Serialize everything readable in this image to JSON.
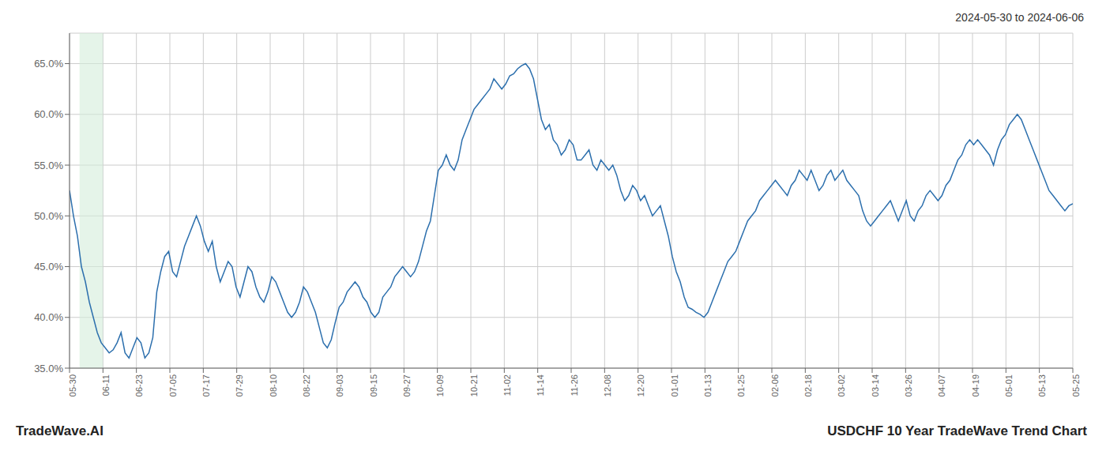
{
  "chart_data": {
    "type": "line",
    "title": "2024-05-30 to 2024-06-06",
    "annotations": [
      "TradeWave.AI",
      "USDCHF 10 Year TradeWave Trend Chart"
    ],
    "color": "#2c6fad",
    "grid": true,
    "highlight": {
      "x": [
        0.3,
        1.0
      ],
      "color": "#d4edda"
    },
    "xlim": [
      0,
      30
    ],
    "xticks": [
      {
        "value": 0,
        "label": "05-30"
      },
      {
        "value": 1,
        "label": "06-11"
      },
      {
        "value": 2,
        "label": "06-23"
      },
      {
        "value": 3,
        "label": "07-05"
      },
      {
        "value": 4,
        "label": "07-17"
      },
      {
        "value": 5,
        "label": "07-29"
      },
      {
        "value": 6,
        "label": "08-10"
      },
      {
        "value": 7,
        "label": "08-22"
      },
      {
        "value": 8,
        "label": "09-03"
      },
      {
        "value": 9,
        "label": "09-15"
      },
      {
        "value": 10,
        "label": "09-27"
      },
      {
        "value": 11,
        "label": "10-09"
      },
      {
        "value": 12,
        "label": "10-21"
      },
      {
        "value": 13,
        "label": "11-02"
      },
      {
        "value": 14,
        "label": "11-14"
      },
      {
        "value": 15,
        "label": "11-26"
      },
      {
        "value": 16,
        "label": "12-08"
      },
      {
        "value": 17,
        "label": "12-20"
      },
      {
        "value": 18,
        "label": "01-01"
      },
      {
        "value": 19,
        "label": "01-13"
      },
      {
        "value": 20,
        "label": "01-25"
      },
      {
        "value": 21,
        "label": "02-06"
      },
      {
        "value": 22,
        "label": "02-18"
      },
      {
        "value": 23,
        "label": "03-02"
      },
      {
        "value": 24,
        "label": "03-14"
      },
      {
        "value": 25,
        "label": "03-26"
      },
      {
        "value": 26,
        "label": "04-07"
      },
      {
        "value": 27,
        "label": "04-19"
      },
      {
        "value": 28,
        "label": "05-01"
      },
      {
        "value": 29,
        "label": "05-13"
      },
      {
        "value": 30,
        "label": "05-25"
      }
    ],
    "ylim": [
      35.0,
      68.0
    ],
    "yticks": [
      {
        "value": 35.0,
        "label": "35.0%"
      },
      {
        "value": 40.0,
        "label": "40.0%"
      },
      {
        "value": 45.0,
        "label": "45.0%"
      },
      {
        "value": 50.0,
        "label": "50.0%"
      },
      {
        "value": 55.0,
        "label": "55.0%"
      },
      {
        "value": 60.0,
        "label": "60.0%"
      },
      {
        "value": 65.0,
        "label": "65.0%"
      }
    ],
    "x": [
      0,
      0.118577,
      0.237154,
      0.355731,
      0.474308,
      0.592885,
      0.711462,
      0.83004,
      0.948617,
      1.067194,
      1.185771,
      1.304348,
      1.422925,
      1.541502,
      1.660079,
      1.778656,
      1.897233,
      2.01581,
      2.134387,
      2.252964,
      2.371542,
      2.490119,
      2.608696,
      2.727273,
      2.84585,
      2.964427,
      3.083004,
      3.201581,
      3.320158,
      3.438735,
      3.557312,
      3.675889,
      3.794466,
      3.913043,
      4.031621,
      4.150198,
      4.268775,
      4.387352,
      4.505929,
      4.624506,
      4.743083,
      4.86166,
      4.980237,
      5.098814,
      5.217391,
      5.335968,
      5.454545,
      5.573123,
      5.6917,
      5.810277,
      5.928854,
      6.047431,
      6.166008,
      6.284585,
      6.403162,
      6.521739,
      6.640316,
      6.758893,
      6.87747,
      6.996047,
      7.114625,
      7.233202,
      7.351779,
      7.470356,
      7.588933,
      7.70751,
      7.826087,
      7.944664,
      8.063241,
      8.181818,
      8.300395,
      8.418972,
      8.537549,
      8.656126,
      8.774704,
      8.893281,
      9.011858,
      9.130435,
      9.249012,
      9.367589,
      9.486166,
      9.604743,
      9.72332,
      9.841897,
      9.960474,
      10.079051,
      10.197628,
      10.316206,
      10.434783,
      10.55336,
      10.671937,
      10.790514,
      10.909091,
      11.027668,
      11.146245,
      11.264822,
      11.383399,
      11.501976,
      11.620553,
      11.73913,
      11.857708,
      11.976285,
      12.094862,
      12.213439,
      12.332016,
      12.450593,
      12.56917,
      12.687747,
      12.806324,
      12.924901,
      13.043478,
      13.162055,
      13.280632,
      13.399209,
      13.517787,
      13.636364,
      13.754941,
      13.873518,
      13.992095,
      14.110672,
      14.229249,
      14.347826,
      14.466403,
      14.58498,
      14.703557,
      14.822134,
      14.940711,
      15.059289,
      15.177866,
      15.296443,
      15.41502,
      15.533597,
      15.652174,
      15.770751,
      15.889328,
      16.007905,
      16.126482,
      16.245059,
      16.363636,
      16.482213,
      16.600791,
      16.719368,
      16.837945,
      16.956522,
      17.075099,
      17.193676,
      17.312253,
      17.43083,
      17.549407,
      17.667984,
      17.786561,
      17.905138,
      18.023715,
      18.142292,
      18.26087,
      18.379447,
      18.498024,
      18.616601,
      18.735178,
      18.853755,
      18.972332,
      19.090909,
      19.209486,
      19.328063,
      19.44664,
      19.565217,
      19.683794,
      19.802372,
      19.920949,
      20.039526,
      20.158103,
      20.27668,
      20.395257,
      20.513834,
      20.632411,
      20.750988,
      20.869565,
      20.988142,
      21.106719,
      21.225296,
      21.343874,
      21.462451,
      21.581028,
      21.699605,
      21.818182,
      21.936759,
      22.055336,
      22.173913,
      22.29249,
      22.411067,
      22.529644,
      22.648221,
      22.766798,
      22.885375,
      23.003953,
      23.12253,
      23.241107,
      23.359684,
      23.478261,
      23.596838,
      23.715415,
      23.833992,
      23.952569,
      24.071146,
      24.189723,
      24.3083,
      24.426877,
      24.545455,
      24.664032,
      24.782609,
      24.901186,
      25.019763,
      25.13834,
      25.256917,
      25.375494,
      25.494071,
      25.612648,
      25.731225,
      25.849802,
      25.968379,
      26.086957,
      26.205534,
      26.324111,
      26.442688,
      26.561265,
      26.679842,
      26.798419,
      26.916996,
      27.035573,
      27.15415,
      27.272727,
      27.391304,
      27.509881,
      27.628458,
      27.747036,
      27.865613,
      27.98419,
      28.102767,
      28.221344,
      28.339921,
      28.458498,
      28.577075,
      28.695652,
      28.814229,
      28.932806,
      29.051383,
      29.16996,
      29.288538,
      29.407115,
      29.525692,
      29.644269,
      29.762846,
      29.881423,
      30
    ],
    "values": [
      52.5,
      50.0,
      48.0,
      45.0,
      43.5,
      41.5,
      40.0,
      38.5,
      37.5,
      37.0,
      36.5,
      36.8,
      37.5,
      38.5,
      36.5,
      36.0,
      37.0,
      38.0,
      37.5,
      36.0,
      36.5,
      38.0,
      42.5,
      44.5,
      46.0,
      46.5,
      44.5,
      44.0,
      45.5,
      47.0,
      48.0,
      49.0,
      50.0,
      49.0,
      47.5,
      46.5,
      47.5,
      45.0,
      43.5,
      44.5,
      45.5,
      45.0,
      43.0,
      42.0,
      43.5,
      45.0,
      44.5,
      43.0,
      42.0,
      41.5,
      42.5,
      44.0,
      43.5,
      42.5,
      41.5,
      40.5,
      40.0,
      40.5,
      41.5,
      43.0,
      42.5,
      41.5,
      40.5,
      39.0,
      37.5,
      37.0,
      37.8,
      39.5,
      41.0,
      41.5,
      42.5,
      43.0,
      43.5,
      43.0,
      42.0,
      41.5,
      40.5,
      40.0,
      40.5,
      42.0,
      42.5,
      43.0,
      44.0,
      44.5,
      45.0,
      44.5,
      44.0,
      44.5,
      45.5,
      47.0,
      48.5,
      49.5,
      52.0,
      54.5,
      55.0,
      56.0,
      55.0,
      54.5,
      55.5,
      57.5,
      58.5,
      59.5,
      60.5,
      61.0,
      61.5,
      62.0,
      62.5,
      63.5,
      63.0,
      62.5,
      63.0,
      63.8,
      64.0,
      64.5,
      64.8,
      65.0,
      64.5,
      63.5,
      61.5,
      59.5,
      58.5,
      59.0,
      57.5,
      57.0,
      56.0,
      56.5,
      57.5,
      57.0,
      55.5,
      55.5,
      56.0,
      56.5,
      55.0,
      54.5,
      55.5,
      55.0,
      54.5,
      55.0,
      54.0,
      52.5,
      51.5,
      52.0,
      53.0,
      52.5,
      51.5,
      52.0,
      51.0,
      50.0,
      50.5,
      51.0,
      49.5,
      48.0,
      46.0,
      44.5,
      43.5,
      42.0,
      41.0,
      40.8,
      40.5,
      40.3,
      40.0,
      40.5,
      41.5,
      42.5,
      43.5,
      44.5,
      45.5,
      46.0,
      46.5,
      47.5,
      48.5,
      49.5,
      50.0,
      50.5,
      51.5,
      52.0,
      52.5,
      53.0,
      53.5,
      53.0,
      52.5,
      52.0,
      53.0,
      53.5,
      54.5,
      54.0,
      53.5,
      54.5,
      53.5,
      52.5,
      53.0,
      54.0,
      54.5,
      53.5,
      54.0,
      54.5,
      53.5,
      53.0,
      52.5,
      52.0,
      50.5,
      49.5,
      49.0,
      49.5,
      50.0,
      50.5,
      51.0,
      51.5,
      50.5,
      49.5,
      50.5,
      51.5,
      50.0,
      49.5,
      50.5,
      51.0,
      52.0,
      52.5,
      52.0,
      51.5,
      52.0,
      53.0,
      53.5,
      54.5,
      55.5,
      56.0,
      57.0,
      57.5,
      57.0,
      57.5,
      57.0,
      56.5,
      56.0,
      55.0,
      56.5,
      57.5,
      58.0,
      59.0,
      59.5,
      60.0,
      59.5,
      58.5,
      57.5,
      56.5,
      55.5,
      54.5,
      53.5,
      52.5,
      52.0,
      51.5,
      51.0,
      50.5,
      51.0,
      51.2
    ]
  }
}
